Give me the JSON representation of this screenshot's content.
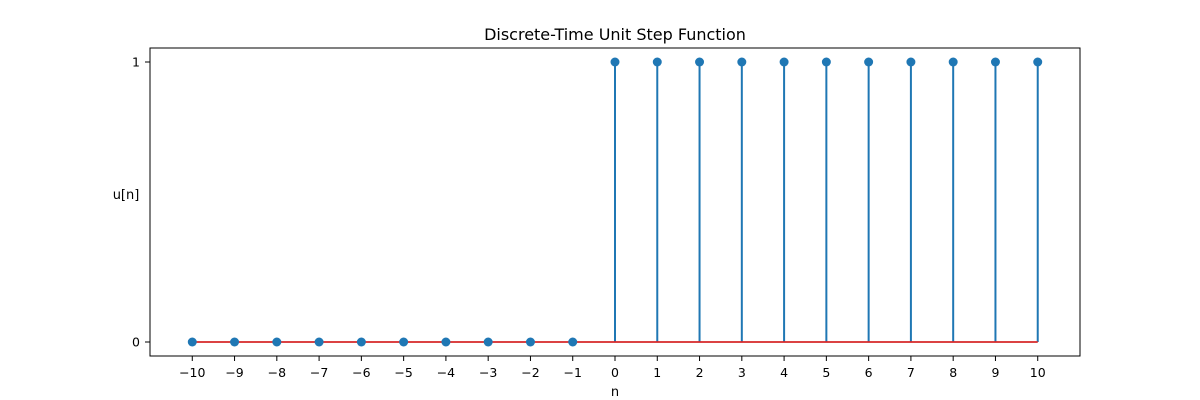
{
  "chart_data": {
    "type": "stem",
    "title": "Discrete-Time Unit Step Function",
    "xlabel": "n",
    "ylabel": "u[n]",
    "x": [
      -10,
      -9,
      -8,
      -7,
      -6,
      -5,
      -4,
      -3,
      -2,
      -1,
      0,
      1,
      2,
      3,
      4,
      5,
      6,
      7,
      8,
      9,
      10
    ],
    "y": [
      0,
      0,
      0,
      0,
      0,
      0,
      0,
      0,
      0,
      0,
      1,
      1,
      1,
      1,
      1,
      1,
      1,
      1,
      1,
      1,
      1
    ],
    "x_ticks": [
      -10,
      -9,
      -8,
      -7,
      -6,
      -5,
      -4,
      -3,
      -2,
      -1,
      0,
      1,
      2,
      3,
      4,
      5,
      6,
      7,
      8,
      9,
      10
    ],
    "x_tick_labels": [
      "−10",
      "−9",
      "−8",
      "−7",
      "−6",
      "−5",
      "−4",
      "−3",
      "−2",
      "−1",
      "0",
      "1",
      "2",
      "3",
      "4",
      "5",
      "6",
      "7",
      "8",
      "9",
      "10"
    ],
    "y_ticks": [
      0,
      1
    ],
    "y_tick_labels": [
      "0",
      "1"
    ],
    "xlim": [
      -11,
      11
    ],
    "ylim": [
      -0.05,
      1.05
    ],
    "grid": false,
    "colors": {
      "stem": "#1f77b4",
      "marker": "#1f77b4",
      "baseline": "#d62728"
    }
  }
}
